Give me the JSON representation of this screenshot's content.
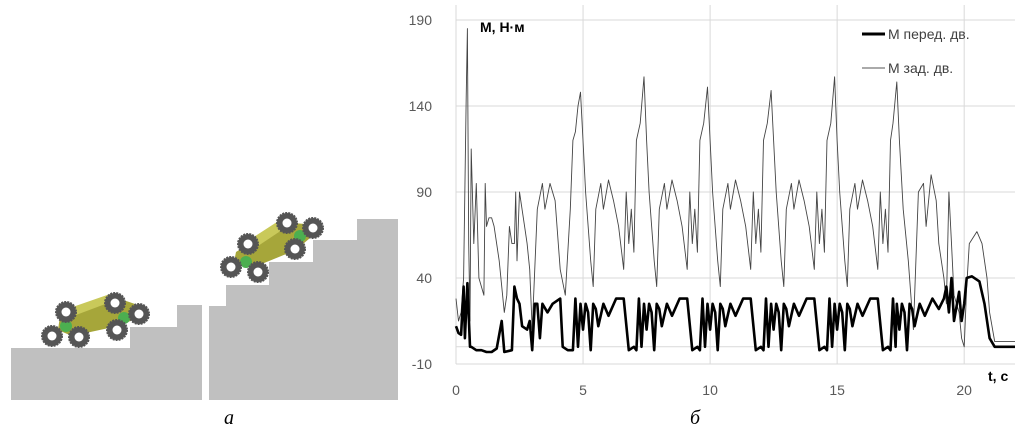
{
  "figure": {
    "panel_a_label": "a",
    "panel_b_label": "б",
    "stairs_color": "#c0c0c0",
    "wheel_color": "#555555",
    "body_color": "#a6a63a",
    "joint_color": "#4caf50"
  },
  "chart_data": {
    "type": "line",
    "ylabel": "M, Н·м",
    "xlabel": "t, c",
    "xlim": [
      0,
      22
    ],
    "ylim": [
      -10,
      190
    ],
    "xticks": [
      0,
      5,
      10,
      15,
      20
    ],
    "yticks": [
      -10,
      40,
      90,
      140,
      190
    ],
    "grid": true,
    "legend_position": "top-right",
    "series": [
      {
        "name": "М перед. дв.",
        "color": "#000000",
        "style": "thick",
        "points": [
          [
            0,
            12
          ],
          [
            0.1,
            8
          ],
          [
            0.2,
            7
          ],
          [
            0.3,
            35
          ],
          [
            0.35,
            5
          ],
          [
            0.45,
            37
          ],
          [
            0.55,
            0
          ],
          [
            0.6,
            0
          ],
          [
            0.8,
            -2
          ],
          [
            1.0,
            -2
          ],
          [
            1.2,
            -3
          ],
          [
            1.4,
            -3
          ],
          [
            1.6,
            -1
          ],
          [
            1.8,
            15
          ],
          [
            1.9,
            -3
          ],
          [
            2.2,
            -2
          ],
          [
            2.3,
            35
          ],
          [
            2.4,
            28
          ],
          [
            2.5,
            25
          ],
          [
            2.6,
            12
          ],
          [
            2.8,
            10
          ],
          [
            2.9,
            15
          ],
          [
            3.0,
            -2
          ],
          [
            3.1,
            25
          ],
          [
            3.2,
            25
          ],
          [
            3.3,
            5
          ],
          [
            3.4,
            25
          ],
          [
            3.6,
            20
          ],
          [
            3.8,
            25
          ],
          [
            4.1,
            28
          ],
          [
            4.2,
            0
          ],
          [
            4.4,
            -2
          ],
          [
            4.6,
            -2
          ],
          [
            4.7,
            28
          ],
          [
            4.8,
            0
          ],
          [
            4.9,
            25
          ],
          [
            5.0,
            10
          ],
          [
            5.1,
            25
          ],
          [
            5.2,
            20
          ],
          [
            5.3,
            -2
          ],
          [
            5.4,
            25
          ],
          [
            5.5,
            22
          ],
          [
            5.6,
            12
          ],
          [
            5.8,
            25
          ],
          [
            6.0,
            18
          ],
          [
            6.3,
            28
          ],
          [
            6.6,
            28
          ],
          [
            6.8,
            -2
          ],
          [
            7.0,
            0
          ],
          [
            7.1,
            -2
          ],
          [
            7.2,
            28
          ],
          [
            7.3,
            0
          ],
          [
            7.4,
            25
          ],
          [
            7.5,
            10
          ],
          [
            7.6,
            25
          ],
          [
            7.7,
            20
          ],
          [
            7.8,
            -2
          ],
          [
            7.9,
            25
          ],
          [
            8.0,
            22
          ],
          [
            8.1,
            12
          ],
          [
            8.3,
            25
          ],
          [
            8.5,
            18
          ],
          [
            8.8,
            28
          ],
          [
            9.1,
            28
          ],
          [
            9.3,
            -2
          ],
          [
            9.5,
            0
          ],
          [
            9.6,
            -2
          ],
          [
            9.7,
            28
          ],
          [
            9.8,
            0
          ],
          [
            9.9,
            25
          ],
          [
            10.0,
            10
          ],
          [
            10.1,
            25
          ],
          [
            10.2,
            20
          ],
          [
            10.3,
            -2
          ],
          [
            10.4,
            25
          ],
          [
            10.5,
            22
          ],
          [
            10.6,
            12
          ],
          [
            10.8,
            25
          ],
          [
            11.0,
            18
          ],
          [
            11.3,
            28
          ],
          [
            11.6,
            28
          ],
          [
            11.8,
            -2
          ],
          [
            12.0,
            0
          ],
          [
            12.1,
            -2
          ],
          [
            12.2,
            28
          ],
          [
            12.3,
            0
          ],
          [
            12.4,
            25
          ],
          [
            12.5,
            10
          ],
          [
            12.6,
            25
          ],
          [
            12.7,
            20
          ],
          [
            12.8,
            -2
          ],
          [
            12.9,
            25
          ],
          [
            13.0,
            22
          ],
          [
            13.1,
            12
          ],
          [
            13.3,
            25
          ],
          [
            13.5,
            18
          ],
          [
            13.8,
            28
          ],
          [
            14.1,
            28
          ],
          [
            14.3,
            -2
          ],
          [
            14.5,
            0
          ],
          [
            14.6,
            -2
          ],
          [
            14.7,
            28
          ],
          [
            14.8,
            0
          ],
          [
            14.9,
            25
          ],
          [
            15.0,
            10
          ],
          [
            15.1,
            25
          ],
          [
            15.2,
            20
          ],
          [
            15.3,
            -2
          ],
          [
            15.4,
            25
          ],
          [
            15.5,
            22
          ],
          [
            15.6,
            12
          ],
          [
            15.8,
            25
          ],
          [
            16.0,
            18
          ],
          [
            16.3,
            28
          ],
          [
            16.6,
            28
          ],
          [
            16.8,
            -2
          ],
          [
            17.0,
            0
          ],
          [
            17.1,
            -2
          ],
          [
            17.2,
            28
          ],
          [
            17.3,
            0
          ],
          [
            17.35,
            25
          ],
          [
            17.45,
            10
          ],
          [
            17.55,
            25
          ],
          [
            17.65,
            20
          ],
          [
            17.75,
            -2
          ],
          [
            17.85,
            25
          ],
          [
            17.95,
            22
          ],
          [
            18.05,
            12
          ],
          [
            18.25,
            25
          ],
          [
            18.45,
            18
          ],
          [
            18.75,
            28
          ],
          [
            19.0,
            22
          ],
          [
            19.2,
            28
          ],
          [
            19.3,
            35
          ],
          [
            19.4,
            20
          ],
          [
            19.5,
            40
          ],
          [
            19.6,
            15
          ],
          [
            19.8,
            32
          ],
          [
            19.9,
            15
          ],
          [
            20.0,
            25
          ],
          [
            20.1,
            40
          ],
          [
            20.3,
            41
          ],
          [
            20.6,
            38
          ],
          [
            20.8,
            25
          ],
          [
            21.0,
            5
          ],
          [
            21.2,
            0
          ],
          [
            22,
            0
          ]
        ]
      },
      {
        "name": "М зад. дв.",
        "color": "#000000",
        "style": "thin",
        "points": [
          [
            0,
            28
          ],
          [
            0.1,
            15
          ],
          [
            0.2,
            20
          ],
          [
            0.3,
            40
          ],
          [
            0.4,
            145
          ],
          [
            0.45,
            185
          ],
          [
            0.5,
            60
          ],
          [
            0.55,
            15
          ],
          [
            0.6,
            115
          ],
          [
            0.7,
            60
          ],
          [
            0.8,
            95
          ],
          [
            0.9,
            40
          ],
          [
            1.0,
            35
          ],
          [
            1.1,
            30
          ],
          [
            1.15,
            95
          ],
          [
            1.2,
            70
          ],
          [
            1.3,
            75
          ],
          [
            1.4,
            75
          ],
          [
            1.5,
            70
          ],
          [
            1.7,
            50
          ],
          [
            1.9,
            20
          ],
          [
            2.0,
            30
          ],
          [
            2.1,
            70
          ],
          [
            2.2,
            60
          ],
          [
            2.3,
            60
          ],
          [
            2.35,
            90
          ],
          [
            2.4,
            50
          ],
          [
            2.5,
            90
          ],
          [
            2.7,
            70
          ],
          [
            2.8,
            60
          ],
          [
            2.9,
            45
          ],
          [
            3.0,
            10
          ],
          [
            3.2,
            80
          ],
          [
            3.4,
            95
          ],
          [
            3.5,
            80
          ],
          [
            3.7,
            95
          ],
          [
            3.9,
            85
          ],
          [
            4.1,
            45
          ],
          [
            4.3,
            30
          ],
          [
            4.5,
            80
          ],
          [
            4.6,
            120
          ],
          [
            4.7,
            125
          ],
          [
            4.8,
            140
          ],
          [
            4.9,
            148
          ],
          [
            5.0,
            120
          ],
          [
            5.1,
            90
          ],
          [
            5.3,
            50
          ],
          [
            5.4,
            35
          ],
          [
            5.5,
            80
          ],
          [
            5.7,
            95
          ],
          [
            5.8,
            80
          ],
          [
            6.0,
            97
          ],
          [
            6.2,
            85
          ],
          [
            6.4,
            70
          ],
          [
            6.6,
            45
          ],
          [
            6.7,
            90
          ],
          [
            6.8,
            60
          ],
          [
            6.9,
            80
          ],
          [
            7.0,
            55
          ],
          [
            7.1,
            120
          ],
          [
            7.25,
            130
          ],
          [
            7.4,
            157
          ],
          [
            7.5,
            120
          ],
          [
            7.6,
            90
          ],
          [
            7.8,
            50
          ],
          [
            7.9,
            35
          ],
          [
            8.0,
            80
          ],
          [
            8.2,
            95
          ],
          [
            8.3,
            80
          ],
          [
            8.5,
            97
          ],
          [
            8.7,
            85
          ],
          [
            8.9,
            70
          ],
          [
            9.1,
            45
          ],
          [
            9.2,
            90
          ],
          [
            9.3,
            60
          ],
          [
            9.4,
            80
          ],
          [
            9.5,
            55
          ],
          [
            9.6,
            120
          ],
          [
            9.75,
            130
          ],
          [
            9.9,
            151
          ],
          [
            10.0,
            120
          ],
          [
            10.1,
            90
          ],
          [
            10.3,
            50
          ],
          [
            10.4,
            35
          ],
          [
            10.5,
            80
          ],
          [
            10.7,
            95
          ],
          [
            10.8,
            80
          ],
          [
            11.0,
            97
          ],
          [
            11.2,
            85
          ],
          [
            11.4,
            70
          ],
          [
            11.6,
            45
          ],
          [
            11.7,
            90
          ],
          [
            11.8,
            60
          ],
          [
            11.9,
            80
          ],
          [
            12.0,
            55
          ],
          [
            12.1,
            120
          ],
          [
            12.25,
            130
          ],
          [
            12.4,
            149
          ],
          [
            12.5,
            120
          ],
          [
            12.6,
            90
          ],
          [
            12.8,
            50
          ],
          [
            12.9,
            35
          ],
          [
            13.0,
            80
          ],
          [
            13.2,
            95
          ],
          [
            13.3,
            80
          ],
          [
            13.5,
            97
          ],
          [
            13.7,
            85
          ],
          [
            13.9,
            70
          ],
          [
            14.1,
            45
          ],
          [
            14.2,
            90
          ],
          [
            14.3,
            60
          ],
          [
            14.4,
            80
          ],
          [
            14.5,
            55
          ],
          [
            14.6,
            120
          ],
          [
            14.75,
            130
          ],
          [
            14.9,
            157
          ],
          [
            15.0,
            120
          ],
          [
            15.1,
            90
          ],
          [
            15.3,
            50
          ],
          [
            15.4,
            35
          ],
          [
            15.5,
            80
          ],
          [
            15.7,
            95
          ],
          [
            15.8,
            80
          ],
          [
            16.0,
            97
          ],
          [
            16.2,
            85
          ],
          [
            16.4,
            70
          ],
          [
            16.6,
            45
          ],
          [
            16.7,
            90
          ],
          [
            16.8,
            60
          ],
          [
            16.9,
            80
          ],
          [
            17.0,
            55
          ],
          [
            17.1,
            120
          ],
          [
            17.2,
            130
          ],
          [
            17.35,
            154
          ],
          [
            17.45,
            120
          ],
          [
            17.6,
            80
          ],
          [
            17.8,
            50
          ],
          [
            18.0,
            10
          ],
          [
            18.2,
            90
          ],
          [
            18.4,
            95
          ],
          [
            18.5,
            70
          ],
          [
            18.7,
            100
          ],
          [
            18.9,
            85
          ],
          [
            19.0,
            60
          ],
          [
            19.2,
            40
          ],
          [
            19.3,
            25
          ],
          [
            19.4,
            90
          ],
          [
            19.5,
            60
          ],
          [
            19.6,
            30
          ],
          [
            19.8,
            20
          ],
          [
            19.9,
            5
          ],
          [
            20.0,
            0
          ],
          [
            20.1,
            35
          ],
          [
            20.2,
            60
          ],
          [
            20.5,
            67
          ],
          [
            20.7,
            60
          ],
          [
            20.9,
            40
          ],
          [
            21.0,
            20
          ],
          [
            21.2,
            3
          ],
          [
            21.5,
            3
          ],
          [
            22,
            3
          ]
        ]
      }
    ]
  }
}
